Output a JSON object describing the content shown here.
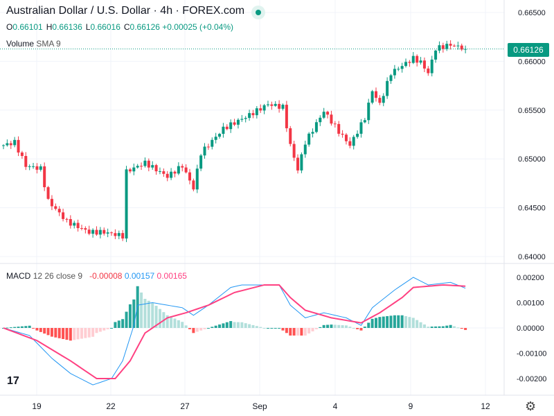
{
  "header": {
    "title": "Australian Dollar / U.S. Dollar · 4h · FOREX.com",
    "o": "0.66101",
    "h": "0.66136",
    "l": "0.66016",
    "c": "0.66126",
    "change": "+0.00025 (+0.04%)",
    "o_label": "O",
    "h_label": "H",
    "l_label": "L",
    "c_label": "C"
  },
  "volume": {
    "label": "Volume",
    "sma": "SMA 9"
  },
  "macd": {
    "label": "MACD",
    "params": "12 26 close 9",
    "hist": "-0.00008",
    "macd": "0.00157",
    "signal": "0.00165"
  },
  "last_price": "0.66126",
  "colors": {
    "up": "#089981",
    "down": "#f23645",
    "macd": "#2196f3",
    "signal": "#ff4081"
  },
  "chart_data": [
    {
      "type": "candlestick",
      "title": "Australian Dollar / U.S. Dollar · 4h · FOREX.com",
      "ylim": [
        0.64,
        0.665
      ],
      "yticks": [
        "0.66500",
        "0.66000",
        "0.65500",
        "0.65000",
        "0.64500",
        "0.64000"
      ],
      "xticks": [
        "19",
        "22",
        "27",
        "Sep",
        "4",
        "9",
        "12"
      ],
      "close_keypoints": [
        [
          0,
          0.6514
        ],
        [
          3,
          0.6517
        ],
        [
          6,
          0.6493
        ],
        [
          10,
          0.649
        ],
        [
          12,
          0.6457
        ],
        [
          17,
          0.6436
        ],
        [
          23,
          0.6425
        ],
        [
          27,
          0.6425
        ],
        [
          32,
          0.6421
        ],
        [
          33,
          0.6487
        ],
        [
          38,
          0.6496
        ],
        [
          44,
          0.6482
        ],
        [
          48,
          0.6493
        ],
        [
          51,
          0.647
        ],
        [
          53,
          0.6506
        ],
        [
          59,
          0.6531
        ],
        [
          66,
          0.6545
        ],
        [
          71,
          0.6556
        ],
        [
          75,
          0.6553
        ],
        [
          77,
          0.6514
        ],
        [
          79,
          0.6489
        ],
        [
          81,
          0.6517
        ],
        [
          86,
          0.6549
        ],
        [
          90,
          0.6528
        ],
        [
          93,
          0.6514
        ],
        [
          97,
          0.6542
        ],
        [
          99,
          0.657
        ],
        [
          101,
          0.6556
        ],
        [
          104,
          0.6588
        ],
        [
          110,
          0.6603
        ],
        [
          112,
          0.6599
        ],
        [
          114,
          0.6588
        ],
        [
          116,
          0.6613
        ],
        [
          120,
          0.6617
        ],
        [
          124,
          0.6613
        ]
      ]
    },
    {
      "type": "line",
      "title": "MACD 12 26 close 9",
      "ylim": [
        -0.0025,
        0.0025
      ],
      "yticks": [
        "0.00200",
        "0.00100",
        "0.00000",
        "-0.00100",
        "-0.00200"
      ],
      "macd_keypoints": [
        [
          0,
          0.0
        ],
        [
          7,
          -0.0003
        ],
        [
          13,
          -0.0012
        ],
        [
          18,
          -0.0018
        ],
        [
          24,
          -0.00225
        ],
        [
          29,
          -0.002
        ],
        [
          32,
          -0.0013
        ],
        [
          35,
          0.0001
        ],
        [
          36,
          0.0009
        ],
        [
          40,
          0.001
        ],
        [
          48,
          0.0008
        ],
        [
          51,
          0.0005
        ],
        [
          55,
          0.0009
        ],
        [
          61,
          0.0016
        ],
        [
          64,
          0.0017
        ],
        [
          74,
          0.0017
        ],
        [
          77,
          0.0009
        ],
        [
          81,
          0.0004
        ],
        [
          86,
          0.0006
        ],
        [
          92,
          0.0004
        ],
        [
          96,
          0.0001
        ],
        [
          99,
          0.0008
        ],
        [
          105,
          0.0015
        ],
        [
          110,
          0.002
        ],
        [
          114,
          0.0017
        ],
        [
          120,
          0.0018
        ],
        [
          124,
          0.00157
        ]
      ],
      "signal_keypoints": [
        [
          0,
          0.0
        ],
        [
          9,
          -0.0005
        ],
        [
          18,
          -0.0013
        ],
        [
          25,
          -0.002
        ],
        [
          30,
          -0.002
        ],
        [
          34,
          -0.0013
        ],
        [
          38,
          -0.0002
        ],
        [
          44,
          0.0004
        ],
        [
          49,
          0.0006
        ],
        [
          55,
          0.0009
        ],
        [
          62,
          0.0014
        ],
        [
          70,
          0.0017
        ],
        [
          74,
          0.0017
        ],
        [
          77,
          0.0012
        ],
        [
          81,
          0.0007
        ],
        [
          88,
          0.0004
        ],
        [
          96,
          0.0002
        ],
        [
          101,
          0.0006
        ],
        [
          107,
          0.0012
        ],
        [
          110,
          0.0016
        ],
        [
          118,
          0.0017
        ],
        [
          124,
          0.00165
        ]
      ]
    }
  ]
}
